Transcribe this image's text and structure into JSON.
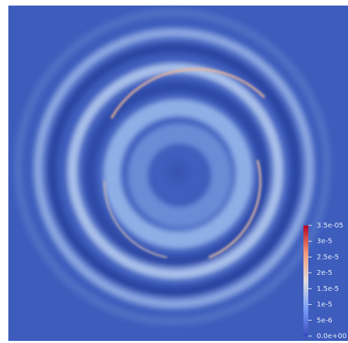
{
  "colorbar": {
    "range": [
      0,
      3.5e-05
    ],
    "ticks": [
      {
        "value": 3.5e-05,
        "label": "3.5e-05"
      },
      {
        "value": 3e-05,
        "label": "3e-5"
      },
      {
        "value": 2.5e-05,
        "label": "2.5e-5"
      },
      {
        "value": 2e-05,
        "label": "2e-5"
      },
      {
        "value": 1.5e-05,
        "label": "1.5e-5"
      },
      {
        "value": 1e-05,
        "label": "1e-5"
      },
      {
        "value": 5e-06,
        "label": "5e-6"
      },
      {
        "value": 0,
        "label": "0.0e+00"
      }
    ]
  }
}
